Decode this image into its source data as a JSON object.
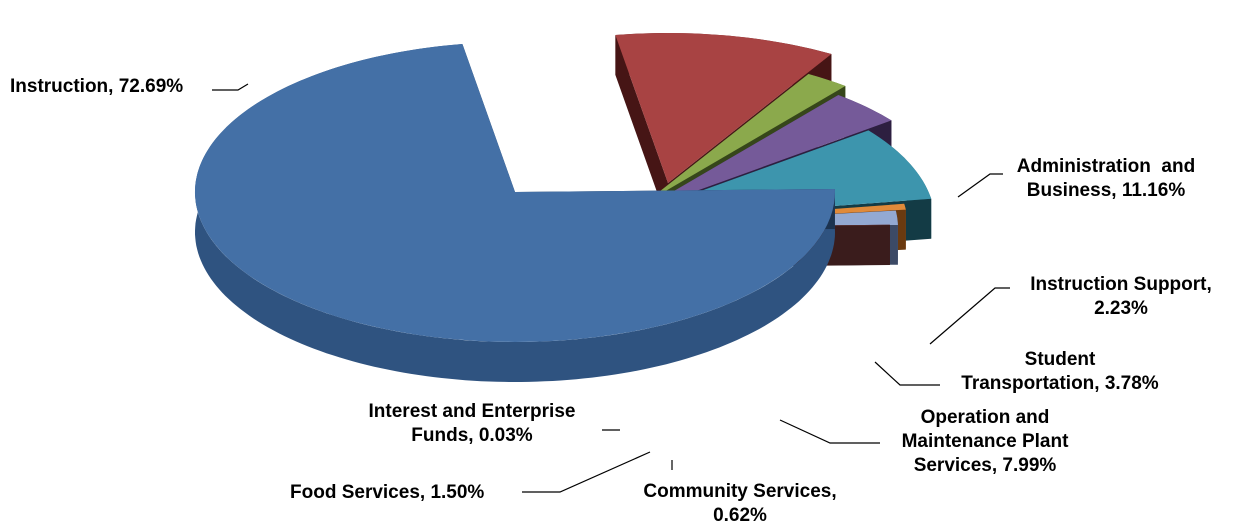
{
  "chart_data": {
    "type": "pie",
    "style": "3d-exploded",
    "title": "",
    "legend": "none",
    "slices": [
      {
        "name": "Instruction",
        "value": 72.69,
        "label": [
          "Instruction, 72.69%"
        ],
        "color": "#4470A6",
        "side_color": "#2F5380",
        "cut_color": "#1C3350"
      },
      {
        "name": "Administration and Business",
        "value": 11.16,
        "label": [
          "Administration  and",
          "Business, 11.16%"
        ],
        "color": "#A84343",
        "side_color": "#6E2525",
        "cut_color": "#461515"
      },
      {
        "name": "Instruction Support",
        "value": 2.23,
        "label": [
          "Instruction Support,",
          "2.23%"
        ],
        "color": "#8BA94C",
        "side_color": "#5C742E",
        "cut_color": "#36461A"
      },
      {
        "name": "Student Transportation",
        "value": 3.78,
        "label": [
          "Student",
          "Transportation, 3.78%"
        ],
        "color": "#755A99",
        "side_color": "#4B3767",
        "cut_color": "#2D1F40"
      },
      {
        "name": "Operation and Maintenance Plant Services",
        "value": 7.99,
        "label": [
          "Operation and",
          "Maintenance Plant",
          "Services, 7.99%"
        ],
        "color": "#3D95AD",
        "side_color": "#22606F",
        "cut_color": "#133B45"
      },
      {
        "name": "Community Services",
        "value": 0.62,
        "label": [
          "Community Services,",
          "0.62%"
        ],
        "color": "#E08A3A",
        "side_color": "#A8601F",
        "cut_color": "#6A3A10"
      },
      {
        "name": "Food Services",
        "value": 1.5,
        "label": [
          "Food Services, 1.50%"
        ],
        "color": "#93A9D2",
        "side_color": "#5F7196",
        "cut_color": "#3C4A66"
      },
      {
        "name": "Interest and Enterprise Funds",
        "value": 0.03,
        "label": [
          "Interest and Enterprise",
          "Funds, 0.03%"
        ],
        "color": "#8A4A4A",
        "side_color": "#5A2E2E",
        "cut_color": "#3A1C1C"
      }
    ]
  }
}
